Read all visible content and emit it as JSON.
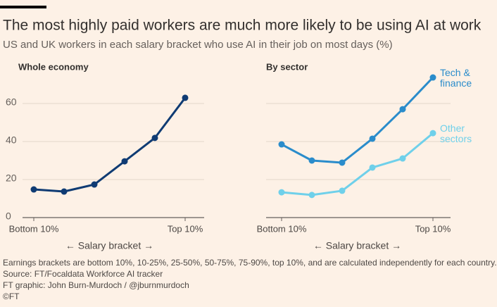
{
  "header": {
    "title": "The most highly paid workers are much more likely to be using AI at work",
    "subtitle": "US and UK workers in each salary bracket who use AI in their job on most days (%)"
  },
  "footer": [
    "Earnings brackets are bottom 10%, 10-25%, 25-50%, 50-75%, 75-90%, top 10%, and are calculated independently for each country.",
    "Source: FT/Focaldata Workforce AI tracker",
    "FT graphic: John Burn-Murdoch / @jburnmurdoch",
    "©FT"
  ],
  "chart_data": [
    {
      "type": "line",
      "title": "Whole economy",
      "x_label": "← Salary bracket →",
      "categories": [
        "Bottom 10%",
        null,
        null,
        null,
        null,
        "Top 10%"
      ],
      "series": [
        {
          "name": null,
          "color": "#0f3b73",
          "values": [
            14.8,
            13.7,
            17.4,
            29.6,
            41.9,
            63
          ]
        }
      ],
      "ylim": [
        0,
        75
      ],
      "yticks": [
        0,
        20,
        40,
        60
      ],
      "grid": true
    },
    {
      "type": "line",
      "title": "By sector",
      "x_label": "← Salary bracket →",
      "categories": [
        "Bottom 10%",
        null,
        null,
        null,
        null,
        "Top 10%"
      ],
      "series": [
        {
          "name": "Tech & finance",
          "color": "#2a8ccb",
          "values": [
            38.5,
            30,
            28.9,
            41.5,
            57,
            73.7
          ]
        },
        {
          "name": "Other sectors",
          "color": "#6fd0ea",
          "values": [
            13.3,
            11.9,
            14.1,
            26.3,
            31.1,
            44.4
          ]
        }
      ],
      "ylim": [
        0,
        75
      ],
      "yticks": [
        0,
        20,
        40,
        60
      ],
      "grid": true
    }
  ]
}
